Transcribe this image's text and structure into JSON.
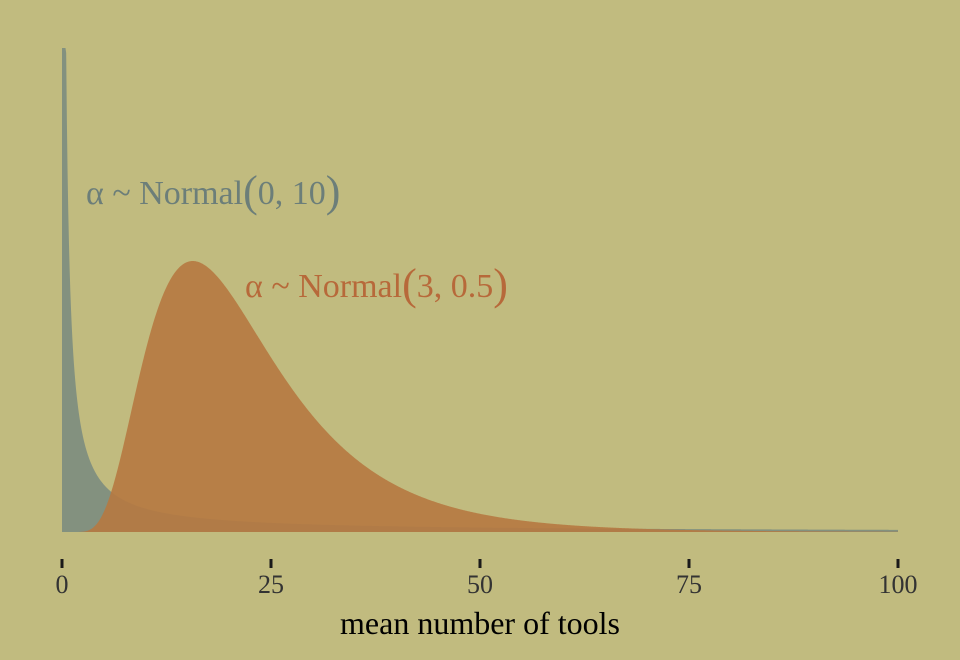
{
  "chart_data": {
    "type": "area",
    "title": "",
    "xlabel": "mean number of tools",
    "ylabel": "",
    "xlim": [
      0,
      100
    ],
    "xticks": [
      {
        "value": 0,
        "label": "0"
      },
      {
        "value": 25,
        "label": "25"
      },
      {
        "value": 50,
        "label": "50"
      },
      {
        "value": 75,
        "label": "75"
      },
      {
        "value": 100,
        "label": "100"
      }
    ],
    "grid": false,
    "legend": "none",
    "background": "#c1bb7f",
    "series": [
      {
        "prior_mu": 0,
        "prior_sigma": 10,
        "color": "#7f8e7f",
        "annotation": {
          "alpha_symbol": "α",
          "tilde": "~",
          "dist": "Normal",
          "lparen": "(",
          "args": "0, 10",
          "rparen": ")"
        },
        "x": [
          0.5,
          1,
          2,
          3,
          4,
          5,
          7,
          10,
          15,
          20,
          30,
          40,
          50,
          60,
          70,
          80,
          90,
          100
        ],
        "density": [
          0.0797,
          0.0399,
          0.0199,
          0.0133,
          0.00995,
          0.00795,
          0.00567,
          0.00395,
          0.00261,
          0.00194,
          0.00128,
          0.00095,
          0.00075,
          0.00062,
          0.00053,
          0.00046,
          0.00041,
          0.00037
        ]
      },
      {
        "prior_mu": 3,
        "prior_sigma": 0.5,
        "color": "#b67941",
        "annotation": {
          "alpha_symbol": "α",
          "tilde": "~",
          "dist": "Normal",
          "lparen": "(",
          "args": "3, 0.5",
          "rparen": ")"
        },
        "x": [
          2,
          4,
          6,
          8,
          10,
          12,
          14,
          16,
          18,
          20,
          25,
          30,
          35,
          40,
          50,
          60,
          70,
          80,
          100
        ],
        "density": [
          2e-05,
          0.00227,
          0.0125,
          0.0267,
          0.0382,
          0.0446,
          0.0466,
          0.0454,
          0.0423,
          0.0383,
          0.0281,
          0.0197,
          0.0135,
          0.0092,
          0.0043,
          0.0021,
          0.0011,
          0.0006,
          0.0002
        ]
      }
    ]
  }
}
